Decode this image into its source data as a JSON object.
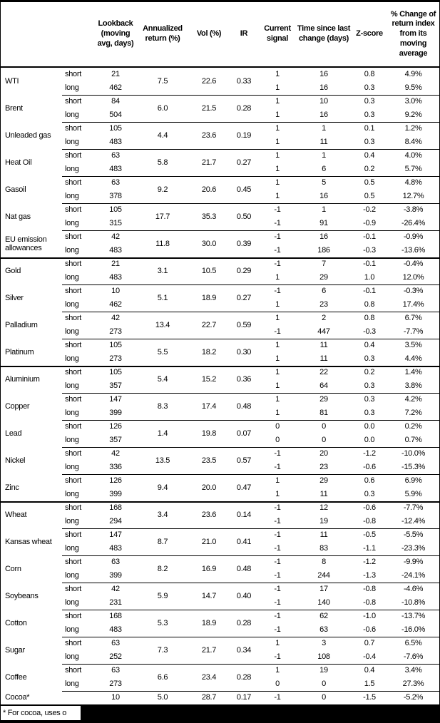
{
  "header": {
    "columns": [
      "",
      "",
      "Lookback (moving avg, days)",
      "Annualized return (%)",
      "Vol (%)",
      "IR",
      "Current signal",
      "Time since last change (days)",
      "Z-score",
      "% Change of return index from its moving average"
    ]
  },
  "table": {
    "side_labels": [
      "short",
      "long"
    ],
    "sections": [
      {
        "commodities": [
          {
            "name": "WTI",
            "ann": "7.5",
            "vol": "22.6",
            "ir": "0.33",
            "rows": [
              {
                "side": "short",
                "lookback": "21",
                "signal": "1",
                "days": "16",
                "z": "0.8",
                "pct": "4.9%"
              },
              {
                "side": "long",
                "lookback": "462",
                "signal": "1",
                "days": "16",
                "z": "0.3",
                "pct": "9.5%"
              }
            ]
          },
          {
            "name": "Brent",
            "ann": "6.0",
            "vol": "21.5",
            "ir": "0.28",
            "rows": [
              {
                "side": "short",
                "lookback": "84",
                "signal": "1",
                "days": "10",
                "z": "0.3",
                "pct": "3.0%"
              },
              {
                "side": "long",
                "lookback": "504",
                "signal": "1",
                "days": "16",
                "z": "0.3",
                "pct": "9.2%"
              }
            ]
          },
          {
            "name": "Unleaded gas",
            "ann": "4.4",
            "vol": "23.6",
            "ir": "0.19",
            "rows": [
              {
                "side": "short",
                "lookback": "105",
                "signal": "1",
                "days": "1",
                "z": "0.1",
                "pct": "1.2%"
              },
              {
                "side": "long",
                "lookback": "483",
                "signal": "1",
                "days": "11",
                "z": "0.3",
                "pct": "8.4%"
              }
            ]
          },
          {
            "name": "Heat Oil",
            "ann": "5.8",
            "vol": "21.7",
            "ir": "0.27",
            "rows": [
              {
                "side": "short",
                "lookback": "63",
                "signal": "1",
                "days": "1",
                "z": "0.4",
                "pct": "4.0%"
              },
              {
                "side": "long",
                "lookback": "483",
                "signal": "1",
                "days": "6",
                "z": "0.2",
                "pct": "5.7%"
              }
            ]
          },
          {
            "name": "Gasoil",
            "ann": "9.2",
            "vol": "20.6",
            "ir": "0.45",
            "rows": [
              {
                "side": "short",
                "lookback": "63",
                "signal": "1",
                "days": "5",
                "z": "0.5",
                "pct": "4.8%"
              },
              {
                "side": "long",
                "lookback": "378",
                "signal": "1",
                "days": "16",
                "z": "0.5",
                "pct": "12.7%"
              }
            ]
          },
          {
            "name": "Nat gas",
            "ann": "17.7",
            "vol": "35.3",
            "ir": "0.50",
            "rows": [
              {
                "side": "short",
                "lookback": "105",
                "signal": "-1",
                "days": "1",
                "z": "-0.2",
                "pct": "-3.8%"
              },
              {
                "side": "long",
                "lookback": "315",
                "signal": "-1",
                "days": "91",
                "z": "-0.9",
                "pct": "-26.4%"
              }
            ]
          },
          {
            "name": "EU emission allowances",
            "ann": "11.8",
            "vol": "30.0",
            "ir": "0.39",
            "rows": [
              {
                "side": "short",
                "lookback": "42",
                "signal": "-1",
                "days": "16",
                "z": "-0.1",
                "pct": "-0.9%"
              },
              {
                "side": "long",
                "lookback": "483",
                "signal": "-1",
                "days": "186",
                "z": "-0.3",
                "pct": "-13.6%"
              }
            ]
          }
        ]
      },
      {
        "commodities": [
          {
            "name": "Gold",
            "ann": "3.1",
            "vol": "10.5",
            "ir": "0.29",
            "rows": [
              {
                "side": "short",
                "lookback": "21",
                "signal": "-1",
                "days": "7",
                "z": "-0.1",
                "pct": "-0.4%"
              },
              {
                "side": "long",
                "lookback": "483",
                "signal": "1",
                "days": "29",
                "z": "1.0",
                "pct": "12.0%"
              }
            ]
          },
          {
            "name": "Silver",
            "ann": "5.1",
            "vol": "18.9",
            "ir": "0.27",
            "rows": [
              {
                "side": "short",
                "lookback": "10",
                "signal": "-1",
                "days": "6",
                "z": "-0.1",
                "pct": "-0.3%"
              },
              {
                "side": "long",
                "lookback": "462",
                "signal": "1",
                "days": "23",
                "z": "0.8",
                "pct": "17.4%"
              }
            ]
          },
          {
            "name": "Palladium",
            "ann": "13.4",
            "vol": "22.7",
            "ir": "0.59",
            "rows": [
              {
                "side": "short",
                "lookback": "42",
                "signal": "1",
                "days": "2",
                "z": "0.8",
                "pct": "6.7%"
              },
              {
                "side": "long",
                "lookback": "273",
                "signal": "-1",
                "days": "447",
                "z": "-0.3",
                "pct": "-7.7%"
              }
            ]
          },
          {
            "name": "Platinum",
            "ann": "5.5",
            "vol": "18.2",
            "ir": "0.30",
            "rows": [
              {
                "side": "short",
                "lookback": "105",
                "signal": "1",
                "days": "11",
                "z": "0.4",
                "pct": "3.5%"
              },
              {
                "side": "long",
                "lookback": "273",
                "signal": "1",
                "days": "11",
                "z": "0.3",
                "pct": "4.4%"
              }
            ]
          }
        ]
      },
      {
        "commodities": [
          {
            "name": "Aluminium",
            "ann": "5.4",
            "vol": "15.2",
            "ir": "0.36",
            "rows": [
              {
                "side": "short",
                "lookback": "105",
                "signal": "1",
                "days": "22",
                "z": "0.2",
                "pct": "1.4%"
              },
              {
                "side": "long",
                "lookback": "357",
                "signal": "1",
                "days": "64",
                "z": "0.3",
                "pct": "3.8%"
              }
            ]
          },
          {
            "name": "Copper",
            "ann": "8.3",
            "vol": "17.4",
            "ir": "0.48",
            "rows": [
              {
                "side": "short",
                "lookback": "147",
                "signal": "1",
                "days": "29",
                "z": "0.3",
                "pct": "4.2%"
              },
              {
                "side": "long",
                "lookback": "399",
                "signal": "1",
                "days": "81",
                "z": "0.3",
                "pct": "7.2%"
              }
            ]
          },
          {
            "name": "Lead",
            "ann": "1.4",
            "vol": "19.8",
            "ir": "0.07",
            "rows": [
              {
                "side": "short",
                "lookback": "126",
                "signal": "0",
                "days": "0",
                "z": "0.0",
                "pct": "0.2%"
              },
              {
                "side": "long",
                "lookback": "357",
                "signal": "0",
                "days": "0",
                "z": "0.0",
                "pct": "0.7%"
              }
            ]
          },
          {
            "name": "Nickel",
            "ann": "13.5",
            "vol": "23.5",
            "ir": "0.57",
            "rows": [
              {
                "side": "short",
                "lookback": "42",
                "signal": "-1",
                "days": "20",
                "z": "-1.2",
                "pct": "-10.0%"
              },
              {
                "side": "long",
                "lookback": "336",
                "signal": "-1",
                "days": "23",
                "z": "-0.6",
                "pct": "-15.3%"
              }
            ]
          },
          {
            "name": "Zinc",
            "ann": "9.4",
            "vol": "20.0",
            "ir": "0.47",
            "rows": [
              {
                "side": "short",
                "lookback": "126",
                "signal": "1",
                "days": "29",
                "z": "0.6",
                "pct": "6.9%"
              },
              {
                "side": "long",
                "lookback": "399",
                "signal": "1",
                "days": "11",
                "z": "0.3",
                "pct": "5.9%"
              }
            ]
          }
        ]
      },
      {
        "commodities": [
          {
            "name": "Wheat",
            "ann": "3.4",
            "vol": "23.6",
            "ir": "0.14",
            "rows": [
              {
                "side": "short",
                "lookback": "168",
                "signal": "-1",
                "days": "12",
                "z": "-0.6",
                "pct": "-7.7%"
              },
              {
                "side": "long",
                "lookback": "294",
                "signal": "-1",
                "days": "19",
                "z": "-0.8",
                "pct": "-12.4%"
              }
            ]
          },
          {
            "name": "Kansas wheat",
            "ann": "8.7",
            "vol": "21.0",
            "ir": "0.41",
            "rows": [
              {
                "side": "short",
                "lookback": "147",
                "signal": "-1",
                "days": "11",
                "z": "-0.5",
                "pct": "-5.5%"
              },
              {
                "side": "long",
                "lookback": "483",
                "signal": "-1",
                "days": "83",
                "z": "-1.1",
                "pct": "-23.3%"
              }
            ]
          },
          {
            "name": "Corn",
            "ann": "8.2",
            "vol": "16.9",
            "ir": "0.48",
            "rows": [
              {
                "side": "short",
                "lookback": "63",
                "signal": "-1",
                "days": "8",
                "z": "-1.2",
                "pct": "-9.9%"
              },
              {
                "side": "long",
                "lookback": "399",
                "signal": "-1",
                "days": "244",
                "z": "-1.3",
                "pct": "-24.1%"
              }
            ]
          },
          {
            "name": "Soybeans",
            "ann": "5.9",
            "vol": "14.7",
            "ir": "0.40",
            "rows": [
              {
                "side": "short",
                "lookback": "42",
                "signal": "-1",
                "days": "17",
                "z": "-0.8",
                "pct": "-4.6%"
              },
              {
                "side": "long",
                "lookback": "231",
                "signal": "-1",
                "days": "140",
                "z": "-0.8",
                "pct": "-10.8%"
              }
            ]
          },
          {
            "name": "Cotton",
            "ann": "5.3",
            "vol": "18.9",
            "ir": "0.28",
            "rows": [
              {
                "side": "short",
                "lookback": "168",
                "signal": "-1",
                "days": "62",
                "z": "-1.0",
                "pct": "-13.7%"
              },
              {
                "side": "long",
                "lookback": "483",
                "signal": "-1",
                "days": "63",
                "z": "-0.6",
                "pct": "-16.0%"
              }
            ]
          },
          {
            "name": "Sugar",
            "ann": "7.3",
            "vol": "21.7",
            "ir": "0.34",
            "rows": [
              {
                "side": "short",
                "lookback": "63",
                "signal": "1",
                "days": "3",
                "z": "0.7",
                "pct": "6.5%"
              },
              {
                "side": "long",
                "lookback": "252",
                "signal": "-1",
                "days": "108",
                "z": "-0.4",
                "pct": "-7.6%"
              }
            ]
          },
          {
            "name": "Coffee",
            "ann": "6.6",
            "vol": "23.4",
            "ir": "0.28",
            "rows": [
              {
                "side": "short",
                "lookback": "63",
                "signal": "1",
                "days": "19",
                "z": "0.4",
                "pct": "3.4%"
              },
              {
                "side": "long",
                "lookback": "273",
                "signal": "0",
                "days": "0",
                "z": "1.5",
                "pct": "27.3%"
              }
            ]
          },
          {
            "name": "Cocoa*",
            "ann": "5.0",
            "vol": "28.7",
            "ir": "0.17",
            "rows": [
              {
                "side": "",
                "lookback": "10",
                "signal": "-1",
                "days": "0",
                "z": "-1.5",
                "pct": "-5.2%"
              }
            ]
          }
        ]
      }
    ]
  },
  "footnote": {
    "text": "* For cocoa, uses o"
  },
  "colors": {
    "text": "#000000",
    "background": "#ffffff",
    "border": "#000000",
    "footer_background": "#000000"
  }
}
